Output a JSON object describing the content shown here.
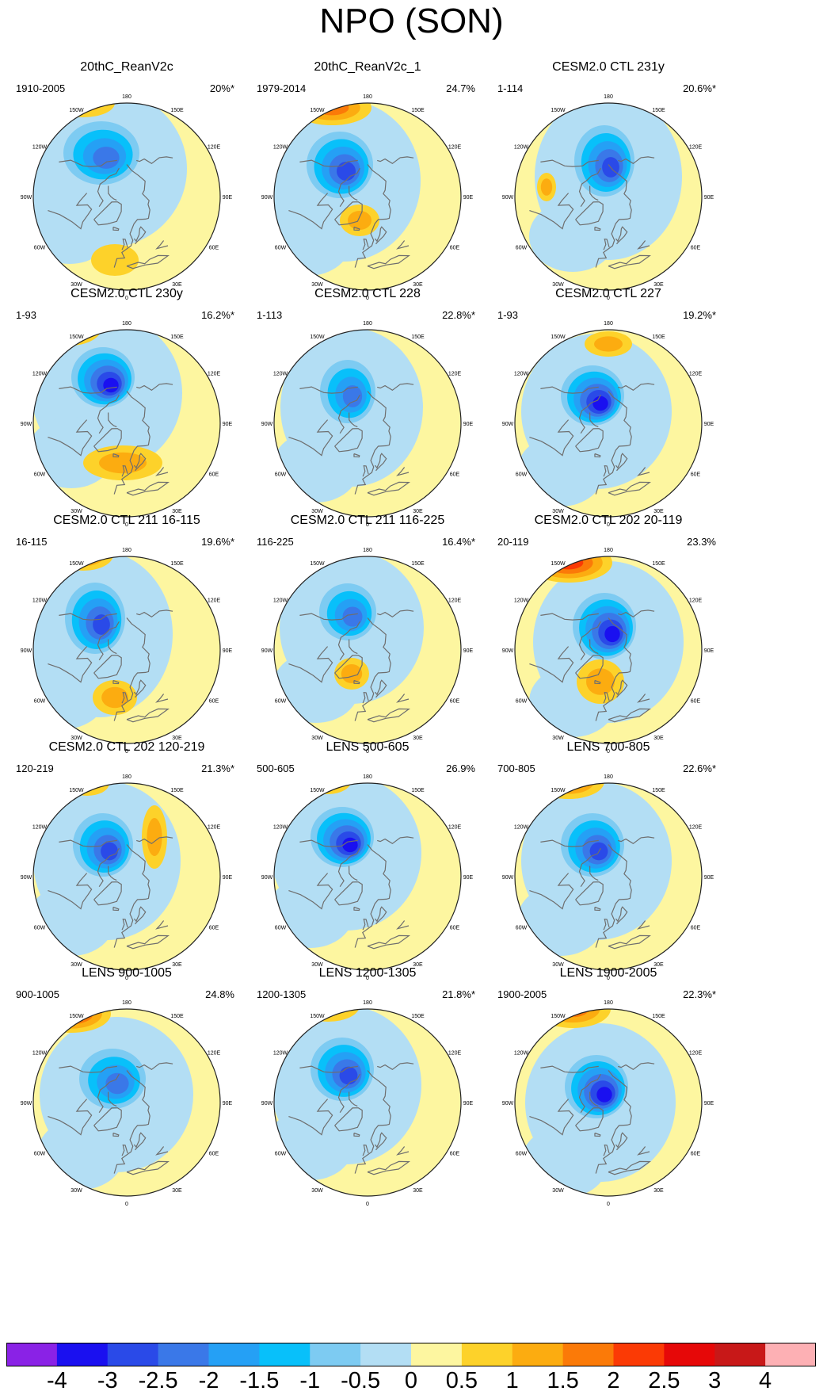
{
  "figure_title": "NPO (SON)",
  "longitude_labels": [
    "180",
    "150E",
    "120E",
    "90E",
    "60E",
    "30E",
    "0",
    "30W",
    "60W",
    "90W",
    "120W",
    "150W"
  ],
  "panels": [
    {
      "title": "20thC_ReanV2c",
      "years": "1910-2005",
      "variance": "20%*"
    },
    {
      "title": "20thC_ReanV2c_1",
      "years": "1979-2014",
      "variance": "24.7%"
    },
    {
      "title": "CESM2.0 CTL 231y",
      "years": "1-114",
      "variance": "20.6%*"
    },
    {
      "title": "CESM2.0 CTL 230y",
      "years": "1-93",
      "variance": "16.2%*"
    },
    {
      "title": "CESM2.0 CTL 228",
      "years": "1-113",
      "variance": "22.8%*"
    },
    {
      "title": "CESM2.0 CTL 227",
      "years": "1-93",
      "variance": "19.2%*"
    },
    {
      "title": "CESM2.0 CTL 211 16-115",
      "years": "16-115",
      "variance": "19.6%*"
    },
    {
      "title": "CESM2.0 CTL 211 116-225",
      "years": "116-225",
      "variance": "16.4%*"
    },
    {
      "title": "CESM2.0 CTL 202 20-119",
      "years": "20-119",
      "variance": "23.3%"
    },
    {
      "title": "CESM2.0 CTL 202 120-219",
      "years": "120-219",
      "variance": "21.3%*"
    },
    {
      "title": "LENS 500-605",
      "years": "500-605",
      "variance": "26.9%"
    },
    {
      "title": "LENS 700-805",
      "years": "700-805",
      "variance": "22.6%*"
    },
    {
      "title": "LENS 900-1005",
      "years": "900-1005",
      "variance": "24.8%"
    },
    {
      "title": "LENS 1200-1305",
      "years": "1200-1305",
      "variance": "21.8%*"
    },
    {
      "title": "LENS 1900-2005",
      "years": "1900-2005",
      "variance": "22.3%*"
    }
  ],
  "colorbar": {
    "levels": [
      "-4",
      "-3",
      "-2.5",
      "-2",
      "-1.5",
      "-1",
      "-0.5",
      "0",
      "0.5",
      "1",
      "1.5",
      "2",
      "2.5",
      "3",
      "4"
    ],
    "colors": [
      "#8a22e6",
      "#1a10f0",
      "#2a4ae8",
      "#3a78e8",
      "#25a0f5",
      "#08c0fa",
      "#7dcbf2",
      "#b3def4",
      "#fdf6a0",
      "#fdd22a",
      "#fcac10",
      "#fb7a08",
      "#fb3a05",
      "#e60808",
      "#c81818",
      "#fdb0b4"
    ]
  }
}
